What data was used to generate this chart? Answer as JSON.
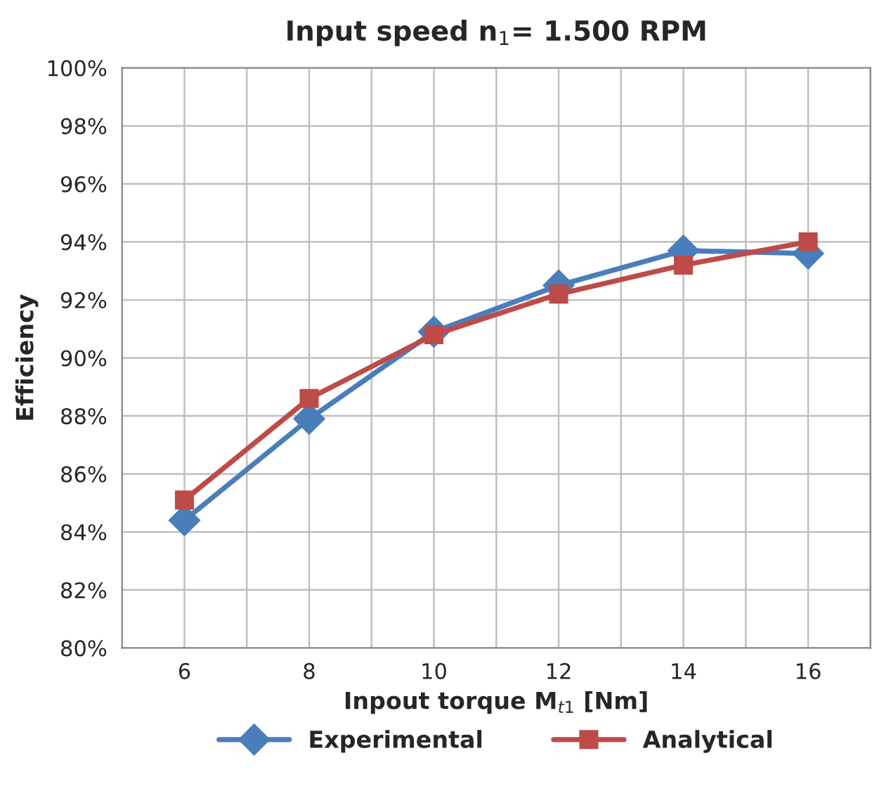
{
  "chart_data": {
    "type": "line",
    "title": "Input speed n$_{1}$= 1.500 RPM",
    "xlabel": "Inpout torque M$_{t1}$ [Nm]",
    "ylabel": "Efficiency",
    "x": [
      6,
      8,
      10,
      12,
      14,
      16
    ],
    "series": [
      {
        "name": "Experimental",
        "color": "#4a7ebb",
        "marker": "diamond",
        "values": [
          84.4,
          87.9,
          90.9,
          92.5,
          93.7,
          93.6
        ]
      },
      {
        "name": "Analytical",
        "color": "#be4b48",
        "marker": "square",
        "values": [
          85.1,
          88.6,
          90.8,
          92.2,
          93.2,
          94.0
        ]
      }
    ],
    "xlim": [
      5,
      17
    ],
    "xticks": [
      {
        "value": 5,
        "label": null
      },
      6,
      {
        "value": 7,
        "label": null
      },
      8,
      {
        "value": 9,
        "label": null
      },
      10,
      {
        "value": 11,
        "label": null
      },
      12,
      {
        "value": 13,
        "label": null
      },
      14,
      {
        "value": 15,
        "label": null
      },
      16,
      {
        "value": 17,
        "label": null
      }
    ],
    "ylim": [
      80,
      100
    ],
    "yticks": [
      {
        "value": 80,
        "label": "80%"
      },
      {
        "value": 82,
        "label": "82%"
      },
      {
        "value": 84,
        "label": "84%"
      },
      {
        "value": 86,
        "label": "86%"
      },
      {
        "value": 88,
        "label": "88%"
      },
      {
        "value": 90,
        "label": "90%"
      },
      {
        "value": 92,
        "label": "92%"
      },
      {
        "value": 94,
        "label": "94%"
      },
      {
        "value": 96,
        "label": "96%"
      },
      {
        "value": 98,
        "label": "98%"
      },
      {
        "value": 100,
        "label": "100%"
      }
    ],
    "grid": true,
    "legend": "bottom",
    "line_style": "solid"
  }
}
